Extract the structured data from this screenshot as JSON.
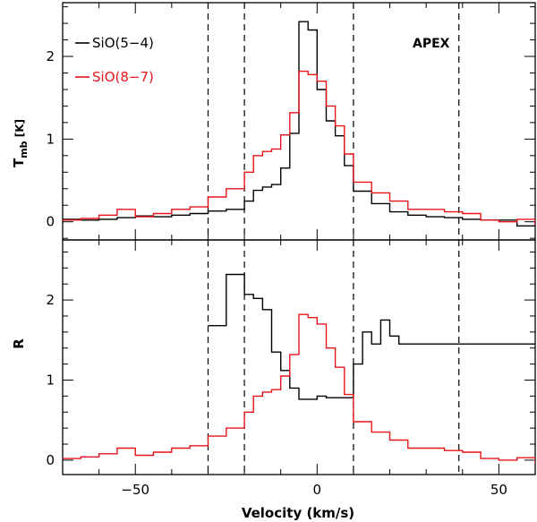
{
  "chart_data": {
    "type": "line",
    "style": "histogram-step",
    "xlabel": "Velocity (km/s)",
    "xlim": [
      -70,
      60
    ],
    "x_ticks": [
      -50,
      0,
      50
    ],
    "x_tick_labels": [
      "−50",
      "0",
      "50"
    ],
    "vertical_dashed_lines_kms": [
      -30,
      -20,
      10,
      39
    ],
    "panels": [
      {
        "id": "spectra",
        "ylabel_main": "T",
        "ylabel_sub": "mb",
        "ylabel_unit": " [K]",
        "ylim": [
          -0.22,
          2.65
        ],
        "y_ticks": [
          0,
          1,
          2
        ],
        "y_tick_labels": [
          "0",
          "1",
          "2"
        ],
        "annotation": "APEX",
        "series": [
          {
            "name": "SiO(5−4)",
            "color": "#000000",
            "x": [
              -70,
              -65,
              -60,
              -55,
              -50,
              -45,
              -40,
              -35,
              -30,
              -25,
              -20,
              -17.5,
              -15,
              -12.5,
              -10,
              -7.5,
              -5,
              -2.5,
              0,
              2.5,
              5,
              7.5,
              10,
              15,
              20,
              25,
              30,
              35,
              40,
              45,
              50,
              55,
              60
            ],
            "y": [
              0.03,
              0.02,
              0.03,
              0.05,
              0.07,
              0.06,
              0.08,
              0.1,
              0.13,
              0.15,
              0.25,
              0.38,
              0.42,
              0.45,
              0.65,
              1.07,
              2.42,
              2.32,
              1.6,
              1.22,
              1.04,
              0.68,
              0.37,
              0.22,
              0.12,
              0.08,
              0.06,
              0.05,
              0.03,
              0.02,
              0.02,
              -0.05,
              0.01
            ]
          },
          {
            "name": "SiO(8−7)",
            "color": "#e8141a",
            "x": [
              -70,
              -65,
              -60,
              -55,
              -50,
              -45,
              -40,
              -35,
              -30,
              -25,
              -20,
              -17.5,
              -15,
              -12.5,
              -10,
              -7.5,
              -5,
              -2.5,
              0,
              2.5,
              5,
              7.5,
              10,
              15,
              20,
              25,
              30,
              35,
              40,
              45,
              50,
              55,
              60
            ],
            "y": [
              0.02,
              0.04,
              0.08,
              0.15,
              0.06,
              0.1,
              0.15,
              0.18,
              0.3,
              0.4,
              0.6,
              0.8,
              0.85,
              0.88,
              1.05,
              1.32,
              1.82,
              1.78,
              1.7,
              1.4,
              1.16,
              0.82,
              0.48,
              0.35,
              0.25,
              0.15,
              0.15,
              0.12,
              0.1,
              0.02,
              0.0,
              0.03,
              -0.04
            ]
          }
        ]
      },
      {
        "id": "ratio",
        "ylabel_main": "R",
        "ylim": [
          -0.18,
          2.75
        ],
        "y_ticks": [
          0,
          1,
          2
        ],
        "y_tick_labels": [
          "0",
          "1",
          "2"
        ],
        "series": [
          {
            "name": "R",
            "color": "#000000",
            "x": [
              -30,
              -27.5,
              -25,
              -20,
              -17.5,
              -15,
              -12.5,
              -10,
              -7.5,
              -5,
              0,
              2.5,
              5,
              10,
              12.5,
              15,
              17.5,
              20,
              22.5,
              25
            ],
            "y": [
              1.68,
              1.68,
              2.32,
              2.07,
              2.02,
              1.88,
              1.35,
              1.12,
              0.9,
              0.76,
              0.8,
              0.78,
              0.78,
              1.2,
              1.6,
              1.45,
              1.75,
              1.55,
              1.45,
              1.45
            ]
          },
          {
            "name": "SiO(8−7) scaled",
            "color": "#e8141a",
            "x": [
              -70,
              -65,
              -60,
              -55,
              -50,
              -45,
              -40,
              -35,
              -30,
              -25,
              -20,
              -17.5,
              -15,
              -12.5,
              -10,
              -7.5,
              -5,
              -2.5,
              0,
              2.5,
              5,
              7.5,
              10,
              15,
              20,
              25,
              30,
              35,
              40,
              45,
              50,
              55,
              60
            ],
            "y": [
              0.02,
              0.04,
              0.08,
              0.15,
              0.06,
              0.1,
              0.15,
              0.18,
              0.3,
              0.4,
              0.6,
              0.8,
              0.85,
              0.88,
              1.05,
              1.32,
              1.82,
              1.78,
              1.7,
              1.4,
              1.16,
              0.82,
              0.48,
              0.35,
              0.25,
              0.15,
              0.15,
              0.12,
              0.1,
              0.02,
              0.0,
              0.03,
              -0.04
            ]
          }
        ]
      }
    ]
  }
}
